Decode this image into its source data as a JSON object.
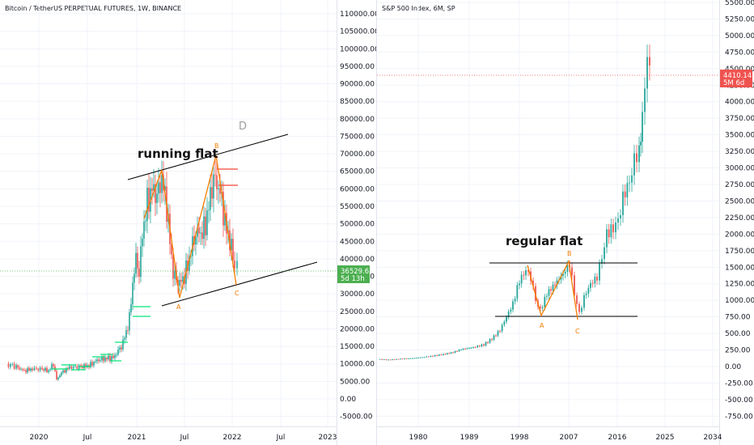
{
  "chart_data": [
    {
      "type": "candlestick",
      "title": "Bitcoin / TetherUS PERPETUAL FUTURES, 1W, BINANCE",
      "x_tick_labels": [
        "2020",
        "Jul",
        "2021",
        "Jul",
        "2022",
        "Jul",
        "2023"
      ],
      "y_tick_labels": [
        "110000.00",
        "105000.00",
        "100000.00",
        "95000.00",
        "90000.00",
        "85000.00",
        "80000.00",
        "75000.00",
        "70000.00",
        "65000.00",
        "60000.00",
        "55000.00",
        "50000.00",
        "45000.00",
        "40000.00",
        "35000.00",
        "30000.00",
        "25000.00",
        "20000.00",
        "15000.00",
        "10000.00",
        "5000.00",
        "0.00",
        "-5000.00"
      ],
      "ylim": [
        -7000,
        112000
      ],
      "last_price": "36529.65",
      "countdown": "5d 13h",
      "annotations": {
        "pattern": "running flat",
        "wave_a": "A",
        "wave_b": "B",
        "wave_c": "C",
        "wave_d": "D"
      },
      "colors": {
        "up": "#26a69a",
        "down": "#ef5350",
        "wave": "#f57c00",
        "channel": "#000000",
        "last_price_tag": "#4caf50"
      }
    },
    {
      "type": "candlestick",
      "title": "S&P 500 Index, 6M, SP",
      "x_tick_labels": [
        "1980",
        "1989",
        "1998",
        "2007",
        "2016",
        "2025",
        "2034"
      ],
      "y_tick_labels": [
        "5500.00",
        "5250.00",
        "5000.00",
        "4750.00",
        "4500.00",
        "4250.00",
        "4000.00",
        "3750.00",
        "3500.00",
        "3250.00",
        "3000.00",
        "2750.00",
        "2500.00",
        "2250.00",
        "2000.00",
        "1750.00",
        "1500.00",
        "1250.00",
        "1000.00",
        "750.00",
        "500.00",
        "250.00",
        "0.00",
        "-250.00",
        "-500.00",
        "-750.00"
      ],
      "ylim": [
        -900,
        5600
      ],
      "last_price": "4410.14",
      "countdown": "5M 6d",
      "annotations": {
        "pattern": "regular flat",
        "wave_a": "A",
        "wave_b": "B",
        "wave_c": "C"
      },
      "colors": {
        "up": "#26a69a",
        "down": "#ef5350",
        "wave": "#f57c00",
        "channel": "#000000",
        "last_price_tag": "#ef5350"
      }
    }
  ]
}
